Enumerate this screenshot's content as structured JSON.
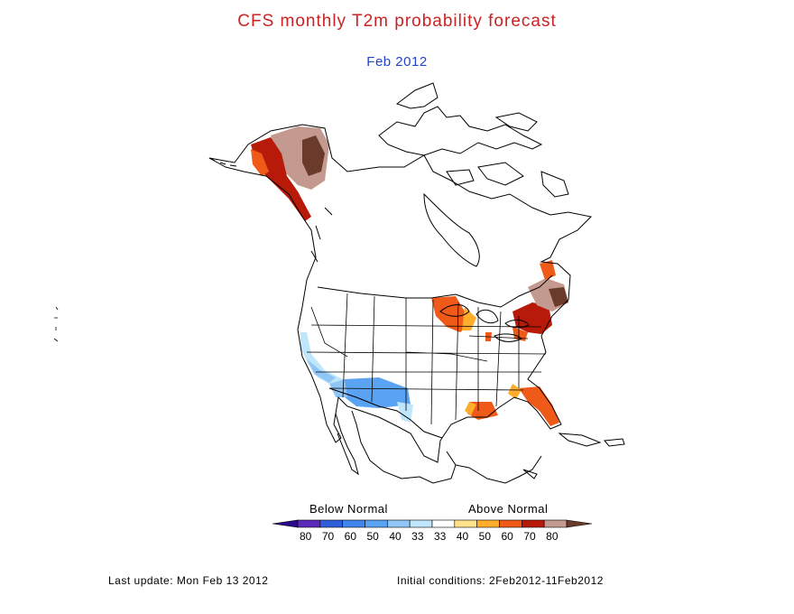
{
  "title": "CFS monthly T2m probability forecast",
  "subtitle": "Feb 2012",
  "colors": {
    "title": "#cc2222",
    "subtitle": "#2244cc",
    "map_lines": "#000000"
  },
  "legend": {
    "below_label": "Below Normal",
    "above_label": "Above Normal",
    "bins": [
      {
        "label": "80",
        "color": "#5a2ab8"
      },
      {
        "label": "70",
        "color": "#2f5fd8"
      },
      {
        "label": "60",
        "color": "#3f86ec"
      },
      {
        "label": "50",
        "color": "#5aa2f2"
      },
      {
        "label": "40",
        "color": "#8fc6f6"
      },
      {
        "label": "33",
        "color": "#bfe6fb"
      },
      {
        "label": "33",
        "color": "#ffffff"
      },
      {
        "label": "40",
        "color": "#ffe28a"
      },
      {
        "label": "50",
        "color": "#ffad2a"
      },
      {
        "label": "60",
        "color": "#f05a18"
      },
      {
        "label": "70",
        "color": "#b81a0a"
      },
      {
        "label": "80",
        "color": "#c49a90"
      }
    ],
    "end_colors": {
      "low": "#2a0a8a",
      "high": "#6a3a2a"
    }
  },
  "map": {
    "region": "North America",
    "anomaly_areas": [
      {
        "region": "Alaska",
        "category": "above",
        "level": "70-80"
      },
      {
        "region": "Great Lakes / Wisconsin",
        "category": "above",
        "level": "50-70"
      },
      {
        "region": "Northeast US",
        "category": "above",
        "level": "60-80"
      },
      {
        "region": "Maine / New Brunswick",
        "category": "above",
        "level": "40-60"
      },
      {
        "region": "Florida / Georgia",
        "category": "above",
        "level": "40-70"
      },
      {
        "region": "Louisiana Gulf Coast",
        "category": "above",
        "level": "40-60"
      },
      {
        "region": "California coast",
        "category": "below",
        "level": "33-40"
      },
      {
        "region": "Southwest US",
        "category": "below",
        "level": "33-50"
      }
    ]
  },
  "footer": {
    "last_update": "Last update: Mon Feb 13 2012",
    "initial_conditions": "Initial conditions: 2Feb2012-11Feb2012"
  }
}
